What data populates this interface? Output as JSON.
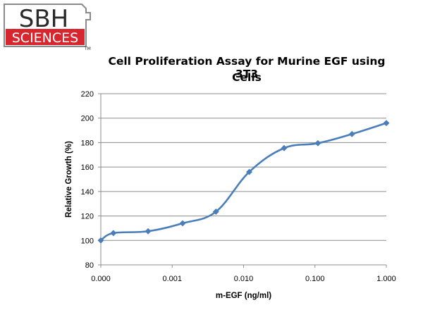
{
  "logo": {
    "top": "SBH",
    "bottom": "SCIENCES",
    "tm": "TM",
    "red": "#d8262e",
    "gray": "#8a8a8a"
  },
  "chart_data": {
    "type": "line",
    "title_line1": "Cell Proliferation Assay for Murine EGF using 3T3",
    "title_line2": "Cells",
    "xlabel": "m-EGF (ng/ml)",
    "ylabel": "Relative Growth (%)",
    "xscale": "log",
    "xtick_labels": [
      "0.000",
      "0.001",
      "0.010",
      "0.100",
      "1.000"
    ],
    "xlim": [
      0.0001,
      1.0
    ],
    "ylim": [
      80,
      220
    ],
    "yticks": [
      80,
      100,
      120,
      140,
      160,
      180,
      200,
      220
    ],
    "grid": "horizontal",
    "line_color": "#4a7ebb",
    "x": [
      0.0001,
      0.00015,
      0.00046,
      0.0014,
      0.0041,
      0.012,
      0.037,
      0.11,
      0.33,
      1.0
    ],
    "y": [
      100,
      106,
      107.5,
      114,
      123.5,
      156,
      175.5,
      179.5,
      187,
      196
    ]
  }
}
